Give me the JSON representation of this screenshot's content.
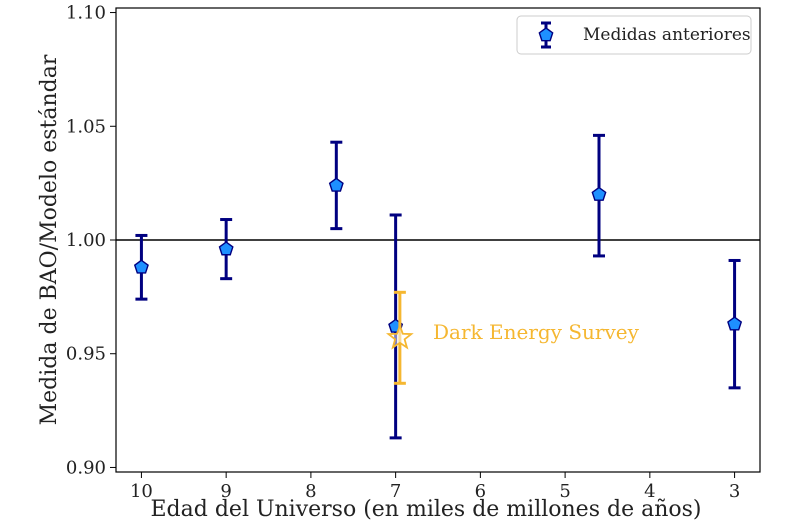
{
  "chart_data": {
    "type": "scatter",
    "xlabel": "Edad del Universo (en miles de millones de años)",
    "ylabel": "Medida de BAO/Modelo estándar",
    "xlim": [
      10.3,
      2.7
    ],
    "ylim": [
      0.898,
      1.102
    ],
    "x_ticks": [
      10,
      9,
      8,
      7,
      6,
      5,
      4,
      3
    ],
    "x_tick_labels": [
      "10",
      "9",
      "8",
      "7",
      "6",
      "5",
      "4",
      "3"
    ],
    "y_ticks": [
      0.9,
      0.95,
      1.0,
      1.05,
      1.1
    ],
    "y_tick_labels": [
      "0.90",
      "0.95",
      "1.00",
      "1.05",
      "1.10"
    ],
    "reference_line": 1.0,
    "legend_position": "top-right",
    "series": [
      {
        "name": "Medidas anteriores",
        "marker": "pentagon",
        "color": "#1e90ff",
        "edge_color": "#000080",
        "points": [
          {
            "x": 10.0,
            "y": 0.988,
            "ylo": 0.974,
            "yhi": 1.002
          },
          {
            "x": 9.0,
            "y": 0.996,
            "ylo": 0.983,
            "yhi": 1.009
          },
          {
            "x": 7.7,
            "y": 1.024,
            "ylo": 1.005,
            "yhi": 1.043
          },
          {
            "x": 7.0,
            "y": 0.962,
            "ylo": 0.913,
            "yhi": 1.011
          },
          {
            "x": 4.6,
            "y": 1.02,
            "ylo": 0.993,
            "yhi": 1.046
          },
          {
            "x": 3.0,
            "y": 0.963,
            "ylo": 0.935,
            "yhi": 0.991
          }
        ]
      },
      {
        "name": "Dark Energy Survey",
        "marker": "star",
        "color": "#f5b731",
        "points": [
          {
            "x": 6.95,
            "y": 0.957,
            "ylo": 0.937,
            "yhi": 0.977
          }
        ]
      }
    ],
    "annotation": {
      "text": "Dark Energy Survey",
      "color": "#f5b731"
    }
  }
}
